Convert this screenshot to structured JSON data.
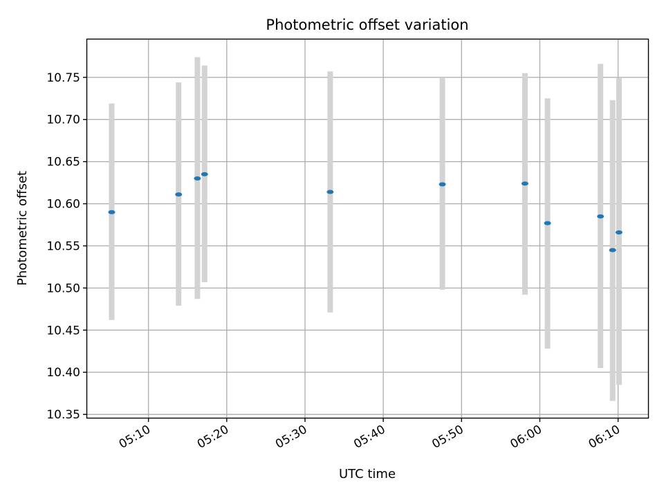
{
  "chart_data": {
    "type": "scatter",
    "title": "Photometric offset variation",
    "xlabel": "UTC time",
    "ylabel": "Photometric offset",
    "xlim": [
      "05:02:10",
      "06:13:50"
    ],
    "ylim": [
      10.346,
      10.795
    ],
    "grid": true,
    "x_ticks": [
      "05:10",
      "05:20",
      "05:30",
      "05:40",
      "05:50",
      "06:00",
      "06:10"
    ],
    "y_ticks": [
      "10.35",
      "10.40",
      "10.45",
      "10.50",
      "10.55",
      "10.60",
      "10.65",
      "10.70",
      "10.75"
    ],
    "marker_color": "#1f77b4",
    "errorbar_color": "#d3d3d3",
    "points": [
      {
        "time": "05:05:18",
        "value": 10.59,
        "err_low": 10.462,
        "err_high": 10.719
      },
      {
        "time": "05:13:51",
        "value": 10.611,
        "err_low": 10.479,
        "err_high": 10.744
      },
      {
        "time": "05:16:15",
        "value": 10.63,
        "err_low": 10.487,
        "err_high": 10.774
      },
      {
        "time": "05:17:10",
        "value": 10.635,
        "err_low": 10.507,
        "err_high": 10.764
      },
      {
        "time": "05:33:13",
        "value": 10.614,
        "err_low": 10.471,
        "err_high": 10.757
      },
      {
        "time": "05:47:33",
        "value": 10.623,
        "err_low": 10.498,
        "err_high": 10.749
      },
      {
        "time": "05:58:06",
        "value": 10.624,
        "err_low": 10.492,
        "err_high": 10.755
      },
      {
        "time": "06:00:59",
        "value": 10.577,
        "err_low": 10.428,
        "err_high": 10.725
      },
      {
        "time": "06:07:45",
        "value": 10.585,
        "err_low": 10.405,
        "err_high": 10.766
      },
      {
        "time": "06:09:18",
        "value": 10.545,
        "err_low": 10.366,
        "err_high": 10.723
      },
      {
        "time": "06:10:07",
        "value": 10.566,
        "err_low": 10.385,
        "err_high": 10.749
      }
    ]
  }
}
